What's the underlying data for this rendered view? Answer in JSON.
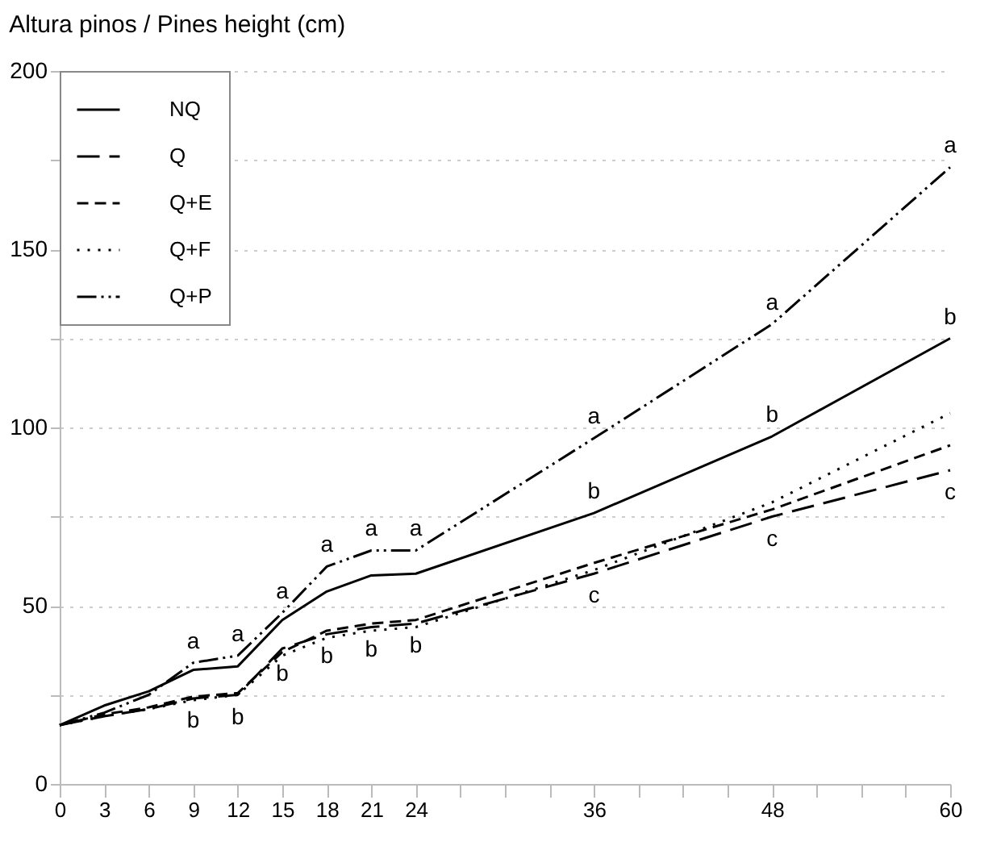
{
  "chart_data": {
    "type": "line",
    "title": "Altura pinos / Pines height (cm)",
    "x": [
      0,
      3,
      6,
      9,
      12,
      15,
      18,
      21,
      24,
      36,
      48,
      60
    ],
    "series": [
      {
        "name": "NQ",
        "color": "#000000",
        "line_style": "solid",
        "values": [
          16.5,
          22,
          26,
          32,
          33,
          46,
          54,
          58.5,
          59,
          76,
          97.5,
          125
        ]
      },
      {
        "name": "Q",
        "color": "#000000",
        "line_style": "longdash",
        "values": [
          16.5,
          19,
          21,
          24,
          25,
          38,
          42,
          44,
          45,
          59,
          75,
          88
        ]
      },
      {
        "name": "Q+E",
        "color": "#000000",
        "line_style": "dashed",
        "values": [
          16.5,
          19.5,
          21.5,
          24.5,
          25.5,
          37,
          43,
          45,
          46,
          62,
          77,
          95
        ]
      },
      {
        "name": "Q+F",
        "color": "#000000",
        "line_style": "dotted",
        "values": [
          16.5,
          19,
          21,
          23.5,
          25,
          36,
          41,
          43,
          44,
          60,
          79,
          104
        ]
      },
      {
        "name": "Q+P",
        "color": "#000000",
        "line_style": "dashdotdot",
        "values": [
          16.5,
          20,
          25,
          34,
          36,
          48,
          61,
          65.5,
          65.5,
          97,
          129,
          173
        ]
      }
    ],
    "xlim": [
      0,
      60
    ],
    "xticks": [
      0,
      3,
      6,
      9,
      12,
      15,
      18,
      21,
      24,
      {
        "value": 27,
        "label": null
      },
      {
        "value": 30,
        "label": null
      },
      {
        "value": 33,
        "label": null
      },
      36,
      {
        "value": 39,
        "label": null
      },
      {
        "value": 42,
        "label": null
      },
      {
        "value": 45,
        "label": null
      },
      48,
      {
        "value": 51,
        "label": null
      },
      {
        "value": 54,
        "label": null
      },
      {
        "value": 57,
        "label": null
      },
      60
    ],
    "ylim": [
      0,
      200
    ],
    "yticks": [
      0,
      {
        "value": 25,
        "label": null
      },
      50,
      {
        "value": 75,
        "label": null
      },
      100,
      {
        "value": 125,
        "label": null
      },
      150,
      {
        "value": 175,
        "label": null
      },
      200
    ],
    "grid": "y",
    "legend": "top left",
    "marker": "none",
    "annotations": [
      {
        "text": "a",
        "x": 9,
        "y": 34
      },
      {
        "text": "b",
        "x": 9,
        "y": 24
      },
      {
        "text": "a",
        "x": 12,
        "y": 36
      },
      {
        "text": "b",
        "x": 12,
        "y": 25
      },
      {
        "text": "a",
        "x": 15,
        "y": 48
      },
      {
        "text": "b",
        "x": 15,
        "y": 37
      },
      {
        "text": "a",
        "x": 18,
        "y": 61
      },
      {
        "text": "b",
        "x": 18,
        "y": 42
      },
      {
        "text": "a",
        "x": 21,
        "y": 65.5
      },
      {
        "text": "b",
        "x": 21,
        "y": 44
      },
      {
        "text": "a",
        "x": 24,
        "y": 65.5
      },
      {
        "text": "b",
        "x": 24,
        "y": 45
      },
      {
        "text": "a",
        "x": 36,
        "y": 97
      },
      {
        "text": "b",
        "x": 36,
        "y": 76
      },
      {
        "text": "c",
        "x": 36,
        "y": 59
      },
      {
        "text": "a",
        "x": 48,
        "y": 129
      },
      {
        "text": "b",
        "x": 48,
        "y": 97.5
      },
      {
        "text": "c",
        "x": 48,
        "y": 75
      },
      {
        "text": "a",
        "x": 60,
        "y": 173
      },
      {
        "text": "b",
        "x": 60,
        "y": 125
      },
      {
        "text": "c",
        "x": 60,
        "y": 88
      }
    ]
  }
}
